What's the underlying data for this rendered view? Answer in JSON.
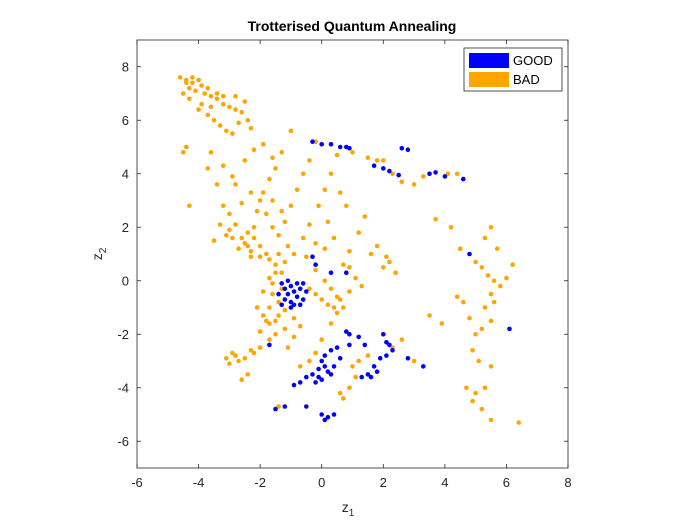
{
  "chart_data": {
    "type": "scatter",
    "title": "Trotterised Quantum Annealing",
    "xlabel": "z",
    "xlabel_sub": "1",
    "ylabel": "z",
    "ylabel_sub": "2",
    "xlim": [
      -6,
      8
    ],
    "ylim": [
      -7,
      9
    ],
    "xticks": [
      -6,
      -4,
      -2,
      0,
      2,
      4,
      6,
      8
    ],
    "yticks": [
      -6,
      -4,
      -2,
      0,
      2,
      4,
      6,
      8
    ],
    "grid": false,
    "legend": {
      "placement": "top-right"
    },
    "series": [
      {
        "name": "GOOD",
        "color": "#0000ff",
        "points": [
          [
            -0.3,
            5.2
          ],
          [
            0.0,
            5.1
          ],
          [
            0.3,
            5.1
          ],
          [
            0.6,
            5.0
          ],
          [
            0.8,
            5.0
          ],
          [
            0.9,
            4.95
          ],
          [
            1.7,
            4.3
          ],
          [
            2.0,
            4.2
          ],
          [
            2.2,
            4.1
          ],
          [
            2.5,
            3.95
          ],
          [
            2.6,
            4.95
          ],
          [
            2.8,
            4.9
          ],
          [
            3.5,
            4.0
          ],
          [
            3.7,
            4.05
          ],
          [
            4.0,
            3.9
          ],
          [
            4.6,
            3.8
          ],
          [
            4.8,
            1.0
          ],
          [
            6.1,
            -1.8
          ],
          [
            -0.3,
            0.9
          ],
          [
            -0.2,
            0.6
          ],
          [
            0.3,
            0.3
          ],
          [
            0.8,
            0.3
          ],
          [
            -1.7,
            -2.4
          ],
          [
            -0.6,
            -0.7
          ],
          [
            -1.3,
            -0.1
          ],
          [
            -1.2,
            -0.3
          ],
          [
            -1.1,
            -0.5
          ],
          [
            -1.0,
            -0.2
          ],
          [
            -0.9,
            -0.4
          ],
          [
            -0.8,
            -0.6
          ],
          [
            -1.0,
            -0.8
          ],
          [
            -0.7,
            -0.3
          ],
          [
            -1.2,
            -0.7
          ],
          [
            -0.9,
            -0.9
          ],
          [
            -0.6,
            -0.1
          ],
          [
            -1.1,
            0.0
          ],
          [
            -0.8,
            -0.1
          ],
          [
            -1.3,
            -0.9
          ],
          [
            -1.0,
            -1.0
          ],
          [
            -0.7,
            -0.9
          ],
          [
            -0.5,
            -0.4
          ],
          [
            -1.4,
            -0.5
          ],
          [
            0.8,
            -1.9
          ],
          [
            0.9,
            -2.0
          ],
          [
            1.2,
            -2.1
          ],
          [
            1.4,
            -2.4
          ],
          [
            2.0,
            -2.0
          ],
          [
            2.1,
            -2.3
          ],
          [
            2.2,
            -2.4
          ],
          [
            0.1,
            -2.8
          ],
          [
            0.3,
            -2.6
          ],
          [
            0.5,
            -2.5
          ],
          [
            0.6,
            -2.9
          ],
          [
            0.9,
            -2.4
          ],
          [
            0.0,
            -3.0
          ],
          [
            -0.1,
            -3.3
          ],
          [
            0.1,
            -3.2
          ],
          [
            0.2,
            -3.4
          ],
          [
            0.4,
            -3.2
          ],
          [
            -0.3,
            -3.5
          ],
          [
            -0.1,
            -3.6
          ],
          [
            -0.5,
            -3.6
          ],
          [
            -0.7,
            -3.8
          ],
          [
            -0.9,
            -3.9
          ],
          [
            -0.2,
            -3.8
          ],
          [
            0.3,
            -3.5
          ],
          [
            0.0,
            -3.7
          ],
          [
            1.3,
            -3.6
          ],
          [
            1.5,
            -3.5
          ],
          [
            1.7,
            -3.2
          ],
          [
            1.9,
            -2.9
          ],
          [
            2.1,
            -2.8
          ],
          [
            2.3,
            -2.6
          ],
          [
            1.8,
            -3.4
          ],
          [
            1.6,
            -3.6
          ],
          [
            2.8,
            -2.9
          ],
          [
            3.3,
            -3.2
          ],
          [
            -1.2,
            -4.7
          ],
          [
            -1.5,
            -4.8
          ],
          [
            -0.5,
            -4.7
          ],
          [
            0.0,
            -5.0
          ],
          [
            0.2,
            -5.1
          ],
          [
            0.4,
            -5.0
          ],
          [
            0.1,
            -5.2
          ]
        ]
      },
      {
        "name": "BAD",
        "color": "#ffa500",
        "points": [
          [
            -4.6,
            7.6
          ],
          [
            -4.4,
            7.5
          ],
          [
            -4.2,
            7.4
          ],
          [
            -4.0,
            7.5
          ],
          [
            -3.9,
            7.3
          ],
          [
            -4.3,
            7.2
          ],
          [
            -4.1,
            7.1
          ],
          [
            -3.8,
            7.0
          ],
          [
            -3.6,
            6.9
          ],
          [
            -3.4,
            6.8
          ],
          [
            -3.2,
            6.6
          ],
          [
            -3.0,
            6.5
          ],
          [
            -2.8,
            6.4
          ],
          [
            -2.6,
            6.3
          ],
          [
            -2.5,
            6.7
          ],
          [
            -2.8,
            6.9
          ],
          [
            -4.5,
            7.0
          ],
          [
            -4.3,
            6.8
          ],
          [
            -3.9,
            6.6
          ],
          [
            -3.7,
            6.2
          ],
          [
            -3.5,
            6.0
          ],
          [
            -3.3,
            5.8
          ],
          [
            -3.1,
            5.6
          ],
          [
            -2.9,
            5.5
          ],
          [
            -2.7,
            5.9
          ],
          [
            -2.4,
            6.0
          ],
          [
            -2.3,
            5.7
          ],
          [
            -4.0,
            6.4
          ],
          [
            -3.6,
            6.5
          ],
          [
            -4.4,
            7.4
          ],
          [
            -4.2,
            7.6
          ],
          [
            -3.7,
            7.2
          ],
          [
            -3.4,
            7.0
          ],
          [
            -3.2,
            6.9
          ],
          [
            -4.5,
            4.8
          ],
          [
            -4.4,
            5.0
          ],
          [
            -4.3,
            2.8
          ],
          [
            -3.7,
            4.2
          ],
          [
            -3.4,
            3.6
          ],
          [
            -3.2,
            2.8
          ],
          [
            -3.0,
            2.5
          ],
          [
            -2.8,
            3.6
          ],
          [
            -2.5,
            4.5
          ],
          [
            -2.3,
            3.3
          ],
          [
            -2.0,
            3.0
          ],
          [
            -1.8,
            2.5
          ],
          [
            -1.6,
            2.0
          ],
          [
            -1.4,
            1.7
          ],
          [
            -1.2,
            2.2
          ],
          [
            -1.0,
            2.8
          ],
          [
            -0.8,
            3.4
          ],
          [
            -0.6,
            4.0
          ],
          [
            -0.4,
            4.5
          ],
          [
            -0.2,
            5.2
          ],
          [
            -1.0,
            5.6
          ],
          [
            -1.3,
            4.8
          ],
          [
            -1.5,
            4.2
          ],
          [
            -1.7,
            3.8
          ],
          [
            -2.2,
            2.0
          ],
          [
            -2.6,
            1.6
          ],
          [
            -2.0,
            1.3
          ],
          [
            -1.8,
            1.0
          ],
          [
            -1.5,
            0.6
          ],
          [
            -1.3,
            0.3
          ],
          [
            -1.6,
            -0.1
          ],
          [
            -1.9,
            -0.4
          ],
          [
            -2.1,
            -1.0
          ],
          [
            -1.8,
            -1.5
          ],
          [
            -1.5,
            -2.0
          ],
          [
            -1.7,
            -2.2
          ],
          [
            -2.0,
            -2.5
          ],
          [
            -2.2,
            -2.7
          ],
          [
            -2.5,
            -2.9
          ],
          [
            -2.7,
            -3.0
          ],
          [
            -2.9,
            -2.7
          ],
          [
            -3.1,
            -2.9
          ],
          [
            -3.0,
            -3.1
          ],
          [
            -2.8,
            -2.8
          ],
          [
            -2.4,
            -3.5
          ],
          [
            -2.6,
            -3.7
          ],
          [
            -2.3,
            -2.6
          ],
          [
            -2.0,
            -1.9
          ],
          [
            -1.7,
            -1.6
          ],
          [
            -1.4,
            -1.3
          ],
          [
            -1.2,
            -1.1
          ],
          [
            -0.9,
            -1.4
          ],
          [
            -0.7,
            -1.7
          ],
          [
            -0.9,
            -2.1
          ],
          [
            -1.1,
            -2.5
          ],
          [
            -0.7,
            -3.2
          ],
          [
            -0.4,
            -3.0
          ],
          [
            -0.2,
            -2.7
          ],
          [
            0.0,
            -2.2
          ],
          [
            0.3,
            -1.6
          ],
          [
            0.5,
            -1.2
          ],
          [
            0.6,
            -0.7
          ],
          [
            0.9,
            -0.4
          ],
          [
            0.7,
            0.6
          ],
          [
            0.9,
            1.1
          ],
          [
            1.2,
            1.8
          ],
          [
            1.4,
            2.4
          ],
          [
            1.6,
            1.0
          ],
          [
            2.0,
            0.5
          ],
          [
            2.2,
            0.7
          ],
          [
            2.4,
            0.3
          ],
          [
            0.8,
            2.8
          ],
          [
            0.6,
            3.3
          ],
          [
            0.3,
            4.0
          ],
          [
            0.5,
            4.7
          ],
          [
            1.0,
            4.8
          ],
          [
            1.5,
            4.6
          ],
          [
            1.8,
            4.5
          ],
          [
            2.0,
            4.5
          ],
          [
            2.3,
            4.0
          ],
          [
            2.6,
            3.7
          ],
          [
            3.0,
            3.6
          ],
          [
            3.3,
            3.9
          ],
          [
            4.1,
            4.0
          ],
          [
            4.4,
            4.0
          ],
          [
            3.7,
            2.3
          ],
          [
            4.2,
            2.0
          ],
          [
            4.5,
            1.2
          ],
          [
            5.0,
            0.7
          ],
          [
            5.2,
            0.5
          ],
          [
            5.4,
            0.2
          ],
          [
            5.6,
            0.0
          ],
          [
            5.8,
            -0.2
          ],
          [
            6.0,
            0.1
          ],
          [
            6.2,
            0.6
          ],
          [
            5.3,
            1.6
          ],
          [
            5.5,
            2.0
          ],
          [
            5.7,
            1.2
          ],
          [
            5.5,
            -0.5
          ],
          [
            5.6,
            -0.8
          ],
          [
            5.3,
            -1.0
          ],
          [
            5.5,
            -1.5
          ],
          [
            5.2,
            -1.8
          ],
          [
            5.0,
            -2.0
          ],
          [
            4.8,
            -1.4
          ],
          [
            4.6,
            -0.8
          ],
          [
            4.4,
            -0.6
          ],
          [
            3.9,
            -1.6
          ],
          [
            3.5,
            -1.3
          ],
          [
            4.9,
            -2.6
          ],
          [
            5.1,
            -3.0
          ],
          [
            5.5,
            -3.2
          ],
          [
            5.3,
            -4.0
          ],
          [
            5.0,
            -4.2
          ],
          [
            4.7,
            -4.0
          ],
          [
            4.9,
            -4.5
          ],
          [
            5.2,
            -4.8
          ],
          [
            5.5,
            -5.2
          ],
          [
            6.4,
            -5.3
          ],
          [
            3.0,
            -3.0
          ],
          [
            2.6,
            -2.2
          ],
          [
            2.3,
            -2.5
          ],
          [
            1.5,
            -2.8
          ],
          [
            1.2,
            -3.0
          ],
          [
            1.0,
            -3.2
          ],
          [
            1.1,
            -3.6
          ],
          [
            0.9,
            -4.0
          ],
          [
            0.6,
            -4.2
          ],
          [
            0.7,
            -4.4
          ],
          [
            -1.4,
            -4.7
          ],
          [
            -0.4,
            -0.3
          ],
          [
            -0.2,
            -0.5
          ],
          [
            0.0,
            -0.7
          ],
          [
            0.2,
            -0.9
          ],
          [
            0.4,
            -1.0
          ],
          [
            -2.6,
            2.9
          ],
          [
            -2.8,
            2.1
          ],
          [
            -3.3,
            2.1
          ],
          [
            -3.5,
            1.5
          ],
          [
            -3.0,
            1.9
          ],
          [
            -2.7,
            1.2
          ],
          [
            -2.4,
            1.8
          ],
          [
            -2.1,
            2.6
          ],
          [
            -1.9,
            3.3
          ],
          [
            -1.6,
            3.0
          ],
          [
            -1.3,
            2.6
          ],
          [
            -1.1,
            1.3
          ],
          [
            -0.9,
            1.0
          ],
          [
            -0.6,
            1.6
          ],
          [
            -0.4,
            2.1
          ],
          [
            -0.1,
            2.8
          ],
          [
            0.1,
            3.4
          ],
          [
            0.2,
            2.2
          ],
          [
            0.4,
            1.6
          ],
          [
            0.1,
            1.2
          ],
          [
            -0.2,
            1.4
          ],
          [
            -3.6,
            4.8
          ],
          [
            -3.2,
            4.3
          ],
          [
            -2.9,
            3.9
          ],
          [
            -2.2,
            4.9
          ],
          [
            -1.9,
            5.1
          ],
          [
            -1.6,
            4.6
          ],
          [
            -2.9,
            1.6
          ],
          [
            -2.5,
            1.4
          ],
          [
            -2.3,
            1.1
          ],
          [
            -2.0,
            0.9
          ],
          [
            -1.7,
            0.8
          ],
          [
            -1.4,
            1.0
          ],
          [
            -1.2,
            0.7
          ],
          [
            -1.5,
            0.3
          ],
          [
            -1.7,
            0.1
          ],
          [
            -1.3,
            -0.3
          ],
          [
            -1.6,
            -0.5
          ],
          [
            -1.4,
            -0.8
          ],
          [
            -1.7,
            -1.0
          ],
          [
            -1.9,
            -1.3
          ],
          [
            -1.5,
            -1.5
          ],
          [
            -1.2,
            -1.8
          ],
          [
            -2.4,
            1.3
          ],
          [
            -2.2,
            1.6
          ],
          [
            -3.1,
            1.7
          ],
          [
            -2.3,
            0.9
          ],
          [
            -0.5,
            0.9
          ],
          [
            -0.2,
            0.4
          ],
          [
            0.1,
            0.0
          ],
          [
            0.3,
            -0.3
          ],
          [
            0.5,
            -0.6
          ],
          [
            0.7,
            -1.0
          ],
          [
            1.3,
            -0.2
          ],
          [
            1.1,
            0.1
          ],
          [
            0.9,
            0.5
          ],
          [
            1.8,
            1.3
          ],
          [
            2.1,
            0.9
          ]
        ]
      }
    ]
  }
}
